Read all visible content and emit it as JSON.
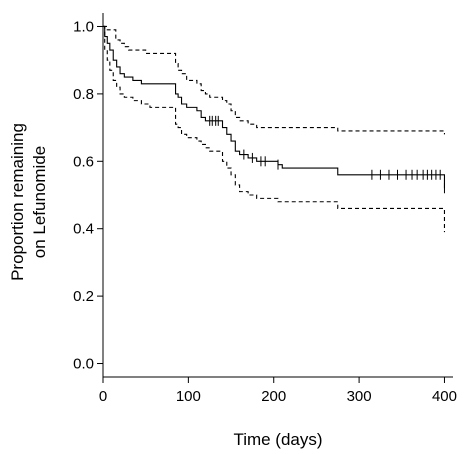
{
  "chart_data": {
    "type": "line",
    "title": "",
    "xlabel": "Time (days)",
    "ylabel_lines": [
      "Proportion remaining",
      "on Lefunomide"
    ],
    "xlim": [
      0,
      410
    ],
    "ylim": [
      -0.04,
      1.04
    ],
    "x_ticks": [
      0,
      100,
      200,
      300,
      400
    ],
    "y_ticks": [
      "0.0",
      "0.2",
      "0.4",
      "0.6",
      "0.8",
      "1.0"
    ],
    "y_tick_values": [
      0.0,
      0.2,
      0.4,
      0.6,
      0.8,
      1.0
    ],
    "grid": false,
    "legend": "none",
    "series": [
      {
        "style": "solid",
        "points": [
          [
            0,
            1.0
          ],
          [
            2,
            0.97
          ],
          [
            5,
            0.95
          ],
          [
            8,
            0.93
          ],
          [
            12,
            0.9
          ],
          [
            16,
            0.88
          ],
          [
            20,
            0.86
          ],
          [
            25,
            0.85
          ],
          [
            35,
            0.84
          ],
          [
            45,
            0.83
          ],
          [
            55,
            0.83
          ],
          [
            85,
            0.8
          ],
          [
            88,
            0.79
          ],
          [
            92,
            0.77
          ],
          [
            98,
            0.76
          ],
          [
            110,
            0.75
          ],
          [
            115,
            0.73
          ],
          [
            120,
            0.72
          ],
          [
            125,
            0.72
          ],
          [
            140,
            0.7
          ],
          [
            145,
            0.68
          ],
          [
            150,
            0.66
          ],
          [
            155,
            0.63
          ],
          [
            160,
            0.62
          ],
          [
            170,
            0.61
          ],
          [
            180,
            0.6
          ],
          [
            205,
            0.59
          ],
          [
            210,
            0.58
          ],
          [
            275,
            0.56
          ],
          [
            400,
            0.52
          ]
        ],
        "censor_x": [
          125,
          128,
          132,
          135,
          165,
          175,
          185,
          190,
          205,
          315,
          325,
          335,
          345,
          355,
          362,
          368,
          375,
          380,
          385,
          390,
          395,
          400
        ]
      },
      {
        "style": "dashed",
        "points": [
          [
            0,
            1.0
          ],
          [
            5,
            0.99
          ],
          [
            15,
            0.96
          ],
          [
            20,
            0.95
          ],
          [
            25,
            0.94
          ],
          [
            30,
            0.93
          ],
          [
            40,
            0.93
          ],
          [
            50,
            0.92
          ],
          [
            85,
            0.89
          ],
          [
            88,
            0.87
          ],
          [
            92,
            0.86
          ],
          [
            98,
            0.84
          ],
          [
            110,
            0.83
          ],
          [
            115,
            0.81
          ],
          [
            120,
            0.8
          ],
          [
            125,
            0.79
          ],
          [
            140,
            0.78
          ],
          [
            145,
            0.77
          ],
          [
            150,
            0.75
          ],
          [
            155,
            0.73
          ],
          [
            160,
            0.72
          ],
          [
            170,
            0.71
          ],
          [
            180,
            0.7
          ],
          [
            205,
            0.7
          ],
          [
            275,
            0.69
          ],
          [
            400,
            0.68
          ]
        ],
        "censor_x": []
      },
      {
        "style": "dashed",
        "points": [
          [
            0,
            1.0
          ],
          [
            2,
            0.93
          ],
          [
            5,
            0.9
          ],
          [
            8,
            0.87
          ],
          [
            12,
            0.84
          ],
          [
            16,
            0.82
          ],
          [
            20,
            0.8
          ],
          [
            25,
            0.79
          ],
          [
            35,
            0.78
          ],
          [
            45,
            0.77
          ],
          [
            55,
            0.76
          ],
          [
            85,
            0.71
          ],
          [
            88,
            0.7
          ],
          [
            92,
            0.68
          ],
          [
            98,
            0.67
          ],
          [
            110,
            0.66
          ],
          [
            115,
            0.65
          ],
          [
            120,
            0.64
          ],
          [
            125,
            0.63
          ],
          [
            140,
            0.6
          ],
          [
            145,
            0.58
          ],
          [
            150,
            0.56
          ],
          [
            155,
            0.53
          ],
          [
            160,
            0.51
          ],
          [
            170,
            0.5
          ],
          [
            180,
            0.49
          ],
          [
            205,
            0.48
          ],
          [
            275,
            0.46
          ],
          [
            398,
            0.46
          ],
          [
            400,
            0.39
          ]
        ],
        "censor_x": []
      }
    ]
  }
}
